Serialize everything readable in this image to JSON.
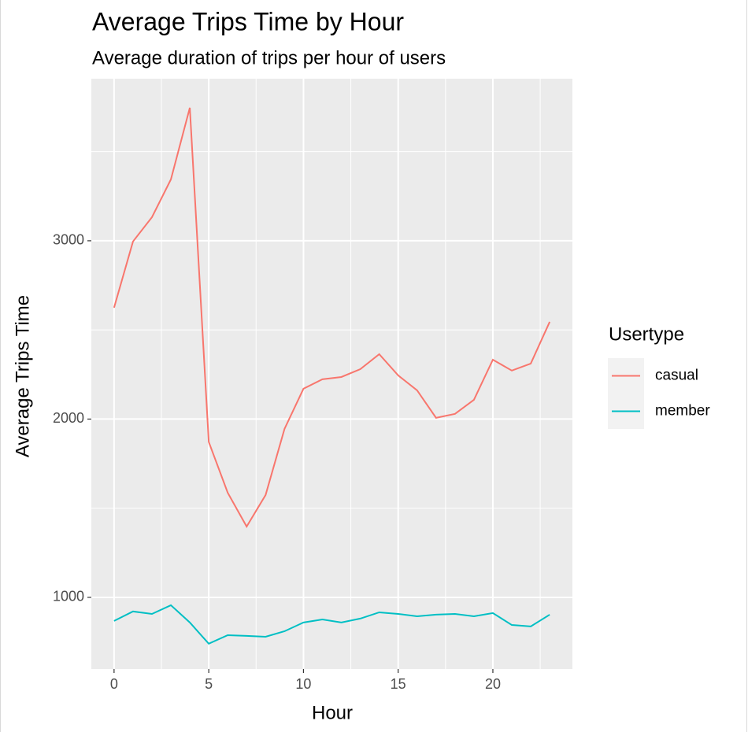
{
  "chart_data": {
    "type": "line",
    "title": "Average Trips Time by Hour",
    "subtitle": "Average duration of trips per hour of users",
    "x_label": "Hour",
    "y_label": "Average Trips Time",
    "legend_title": "Usertype",
    "legend_position": "right",
    "x": [
      0,
      1,
      2,
      3,
      4,
      5,
      6,
      7,
      8,
      9,
      10,
      11,
      12,
      13,
      14,
      15,
      16,
      17,
      18,
      19,
      20,
      21,
      22,
      23
    ],
    "series": [
      {
        "name": "casual",
        "color": "#f8766d",
        "values": [
          2625,
          2996,
          3132,
          3344,
          3746,
          1872,
          1587,
          1397,
          1574,
          1945,
          2170,
          2223,
          2236,
          2280,
          2364,
          2245,
          2161,
          2007,
          2029,
          2108,
          2333,
          2272,
          2311,
          2545
        ]
      },
      {
        "name": "member",
        "color": "#00bfc4",
        "values": [
          868,
          921,
          907,
          956,
          859,
          740,
          788,
          784,
          779,
          810,
          859,
          876,
          859,
          881,
          916,
          907,
          894,
          903,
          907,
          894,
          912,
          845,
          837,
          903
        ]
      }
    ],
    "xlim": [
      -1.2,
      24.2
    ],
    "xticks": [
      0,
      5,
      10,
      15,
      20
    ],
    "ylim": [
      598,
      3909
    ],
    "yticks": [
      1000,
      2000,
      3000
    ],
    "grid": true,
    "minor_grid": true
  }
}
